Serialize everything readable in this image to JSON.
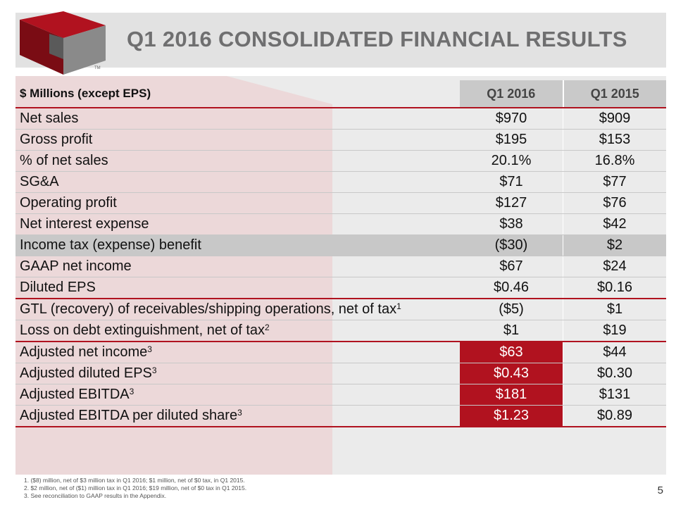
{
  "slide": {
    "title": "Q1 2016 CONSOLIDATED FINANCIAL RESULTS",
    "page_number": "5",
    "logo_tm": "TM"
  },
  "colors": {
    "accent_red": "#b1121f",
    "header_gray": "#e2e2e2",
    "title_gray": "#6f6f70"
  },
  "table": {
    "header": {
      "label": "$ Millions (except EPS)",
      "col1": "Q1 2016",
      "col2": "Q1 2015"
    },
    "rows": [
      {
        "label": "Net sales",
        "sup": "",
        "q1_2016": "$970",
        "q1_2015": "$909"
      },
      {
        "label": "Gross profit",
        "sup": "",
        "q1_2016": "$195",
        "q1_2015": "$153"
      },
      {
        "label": "% of net sales",
        "sup": "",
        "q1_2016": "20.1%",
        "q1_2015": "16.8%"
      },
      {
        "label": "SG&A",
        "sup": "",
        "q1_2016": "$71",
        "q1_2015": "$77"
      },
      {
        "label": "Operating profit",
        "sup": "",
        "q1_2016": "$127",
        "q1_2015": "$76"
      },
      {
        "label": "Net interest expense",
        "sup": "",
        "q1_2016": "$38",
        "q1_2015": "$42"
      },
      {
        "label": "Income tax (expense) benefit",
        "sup": "",
        "q1_2016": "($30)",
        "q1_2015": "$2"
      },
      {
        "label": "GAAP net income",
        "sup": "",
        "q1_2016": "$67",
        "q1_2015": "$24"
      },
      {
        "label": "Diluted EPS",
        "sup": "",
        "q1_2016": "$0.46",
        "q1_2015": "$0.16"
      },
      {
        "label": "GTL (recovery) of receivables/shipping operations, net of tax",
        "sup": "1",
        "q1_2016": "($5)",
        "q1_2015": "$1"
      },
      {
        "label": "Loss on debt extinguishment, net of tax",
        "sup": "2",
        "q1_2016": "$1",
        "q1_2015": "$19"
      },
      {
        "label": "Adjusted net income",
        "sup": "3",
        "q1_2016": "$63",
        "q1_2015": "$44"
      },
      {
        "label": "Adjusted diluted EPS",
        "sup": "3",
        "q1_2016": "$0.43",
        "q1_2015": "$0.30"
      },
      {
        "label": "Adjusted EBITDA",
        "sup": "3",
        "q1_2016": "$181",
        "q1_2015": "$131"
      },
      {
        "label": "Adjusted EBITDA per diluted share",
        "sup": "3",
        "q1_2016": "$1.23",
        "q1_2015": "$0.89"
      }
    ]
  },
  "footnotes": [
    "1. ($8) million, net of $3 million tax in Q1 2016; $1 million, net of $0 tax, in Q1 2015.",
    "2. $2 million, net of ($1) million tax in Q1 2016; $19 million, net of $0 tax in Q1 2015.",
    "3. See reconciliation to GAAP results in the Appendix."
  ]
}
